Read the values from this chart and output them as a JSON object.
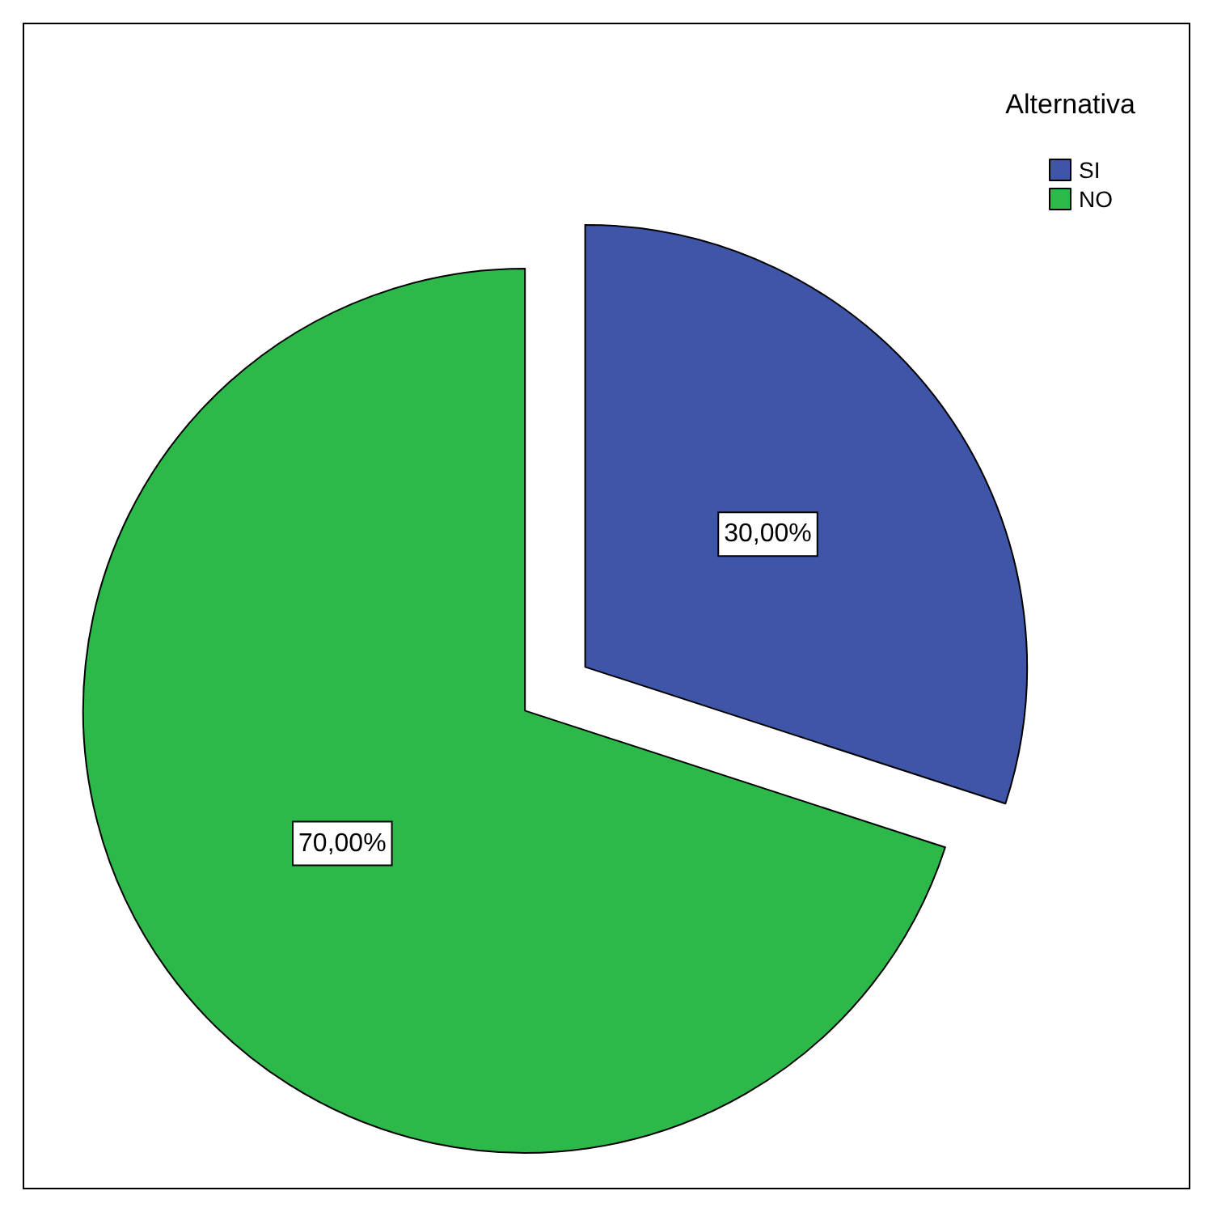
{
  "chart_data": {
    "type": "pie",
    "legend_title": "Alternativa",
    "legend": "top right",
    "categories": [
      "SI",
      "NO"
    ],
    "values": [
      30,
      70
    ],
    "colors": [
      "#3f56a8",
      "#2db84a"
    ],
    "value_labels": [
      "30,00%",
      "70,00%"
    ]
  }
}
